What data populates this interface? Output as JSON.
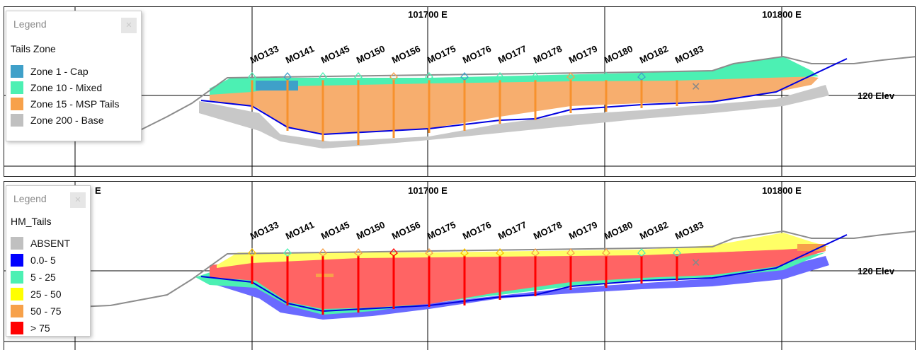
{
  "panels": [
    {
      "id": "top",
      "legend": {
        "title": "Legend",
        "field": "Tails Zone",
        "items": [
          {
            "label": "Zone 1   - Cap",
            "color": "#3fa0c9"
          },
          {
            "label": "Zone 10 - Mixed",
            "color": "#4cf0b3"
          },
          {
            "label": "Zone 15 - MSP Tails",
            "color": "#f7a14a"
          },
          {
            "label": "Zone 200 - Base",
            "color": "#c0c0c0"
          }
        ]
      },
      "easting_labels": [
        "101700 E",
        "101800 E"
      ],
      "elev_label": "120 Elev"
    },
    {
      "id": "bottom",
      "legend": {
        "title": "Legend",
        "field": "HM_Tails",
        "items": [
          {
            "label": "ABSENT",
            "color": "#c0c0c0"
          },
          {
            "label": "0.0- 5",
            "color": "#0000ff"
          },
          {
            "label": "5  - 25",
            "color": "#4cf0b3"
          },
          {
            "label": "25 - 50",
            "color": "#ffff00"
          },
          {
            "label": "50 - 75",
            "color": "#f7a14a"
          },
          {
            "label": " > 75",
            "color": "#ff0000"
          }
        ]
      },
      "easting_labels": [
        "E",
        "101700 E",
        "101800 E"
      ],
      "elev_label": "120 Elev"
    }
  ],
  "drillholes": [
    "MO133",
    "MO141",
    "MO145",
    "MO150",
    "MO156",
    "MO175",
    "MO176",
    "MO177",
    "MO178",
    "MO179",
    "MO180",
    "MO182",
    "MO183"
  ],
  "colors": {
    "cap": "#3fa0c9",
    "mixed": "#4cf0b3",
    "tails": "#f7a14a",
    "base": "#c0c0c0",
    "grade_low": "#0000ff",
    "grade_mid": "#4cf0b3",
    "grade_yellow": "#ffff00",
    "grade_orange": "#f7a14a",
    "grade_high": "#ff5a5a",
    "grade_red": "#ff0000",
    "topo": "#8c8c8c",
    "base_line": "#0000e0",
    "grid": "#000000"
  }
}
